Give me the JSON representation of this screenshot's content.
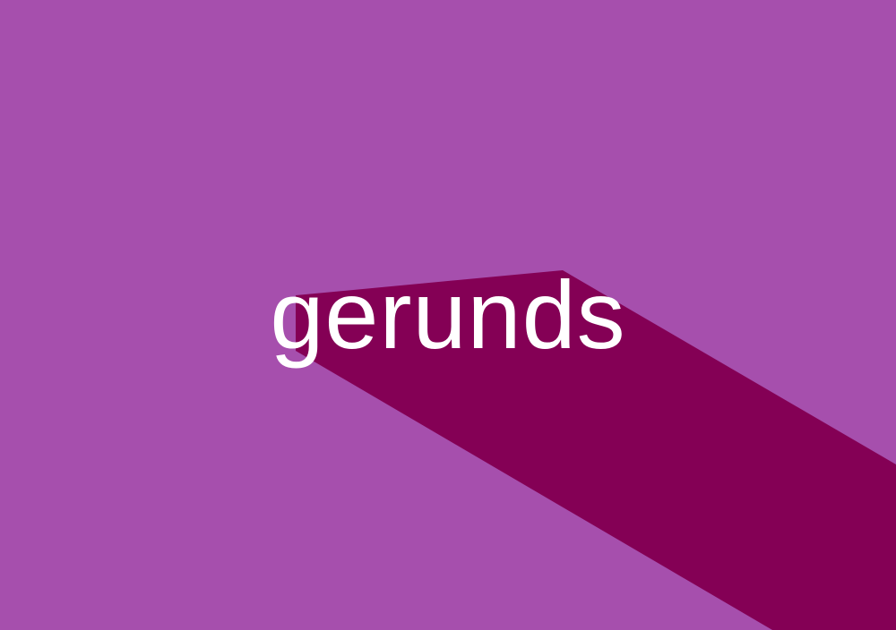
{
  "headline": {
    "text": "gerunds"
  },
  "colors": {
    "background": "#a64fad",
    "shadow": "#840055",
    "text": "#ffffff"
  }
}
